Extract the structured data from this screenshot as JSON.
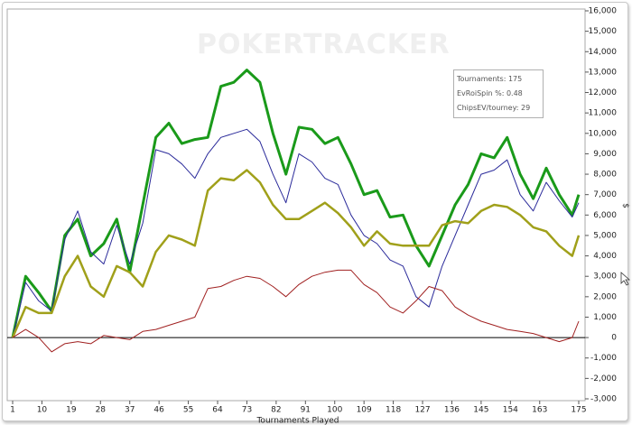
{
  "chart_data": {
    "type": "line",
    "watermark": "POKERTRACKER",
    "xlabel": "Tournaments Played",
    "ylabel": "$",
    "info": [
      "Tournaments: 175",
      "EvRoiSpin %: 0.48",
      "ChipsEV/tourney: 29"
    ],
    "x": [
      1,
      5,
      9,
      13,
      17,
      21,
      25,
      29,
      33,
      37,
      41,
      45,
      49,
      53,
      57,
      61,
      65,
      69,
      73,
      77,
      81,
      85,
      89,
      93,
      97,
      101,
      105,
      109,
      113,
      117,
      121,
      125,
      129,
      133,
      137,
      141,
      145,
      149,
      153,
      157,
      161,
      165,
      169,
      173,
      175
    ],
    "series": [
      {
        "color": "#1a9a1a",
        "width": 3,
        "values": [
          0,
          3000,
          2200,
          1300,
          5000,
          5800,
          4000,
          4600,
          5800,
          3200,
          6500,
          9800,
          10500,
          9500,
          9700,
          9800,
          12300,
          12500,
          13100,
          12500,
          10000,
          8000,
          10300,
          10200,
          9500,
          9800,
          8500,
          7000,
          7200,
          5900,
          6000,
          4500,
          3500,
          5000,
          6500,
          7500,
          9000,
          8800,
          9800,
          8000,
          6800,
          8300,
          7000,
          6000,
          7000
        ]
      },
      {
        "color": "#2a2a9a",
        "width": 1,
        "values": [
          0,
          2700,
          1800,
          1300,
          4800,
          6200,
          4200,
          3600,
          5500,
          3600,
          5600,
          9200,
          9000,
          8500,
          7800,
          9000,
          9800,
          10000,
          10200,
          9600,
          8000,
          6600,
          9000,
          8600,
          7800,
          7500,
          6000,
          5000,
          4600,
          3800,
          3500,
          2000,
          1500,
          3500,
          5000,
          6500,
          8000,
          8200,
          8700,
          7000,
          6200,
          7600,
          6700,
          5900,
          6600
        ]
      },
      {
        "color": "#a0a01a",
        "width": 2.5,
        "values": [
          0,
          1500,
          1200,
          1200,
          3000,
          4000,
          2500,
          2000,
          3500,
          3200,
          2500,
          4200,
          5000,
          4800,
          4500,
          7200,
          7800,
          7700,
          8200,
          7600,
          6500,
          5800,
          5800,
          6200,
          6600,
          6100,
          5400,
          4500,
          5200,
          4600,
          4500,
          4500,
          4500,
          5500,
          5700,
          5600,
          6200,
          6500,
          6400,
          6000,
          5400,
          5200,
          4500,
          4000,
          5000
        ]
      },
      {
        "color": "#a02020",
        "width": 1,
        "values": [
          0,
          400,
          0,
          -700,
          -300,
          -200,
          -300,
          100,
          0,
          -100,
          300,
          400,
          600,
          800,
          1000,
          2400,
          2500,
          2800,
          3000,
          2900,
          2500,
          2000,
          2600,
          3000,
          3200,
          3300,
          3300,
          2600,
          2200,
          1500,
          1200,
          1800,
          2500,
          2300,
          1500,
          1100,
          800,
          600,
          400,
          300,
          200,
          0,
          -200,
          0,
          800
        ]
      }
    ],
    "xlim": [
      1,
      175
    ],
    "xticks": [
      1,
      10,
      19,
      28,
      37,
      46,
      55,
      64,
      73,
      82,
      91,
      100,
      109,
      118,
      127,
      136,
      145,
      154,
      163,
      175
    ],
    "ylim": [
      -3000,
      16000
    ],
    "yticks": [
      {
        "value": -3000,
        "label": "-3,000"
      },
      {
        "value": -2000,
        "label": "-2,000"
      },
      {
        "value": -1000,
        "label": "-1,000"
      },
      0,
      {
        "value": 1000,
        "label": "1,000"
      },
      {
        "value": 2000,
        "label": "2,000"
      },
      {
        "value": 3000,
        "label": "3,000"
      },
      {
        "value": 4000,
        "label": "4,000"
      },
      {
        "value": 5000,
        "label": "5,000"
      },
      {
        "value": 6000,
        "label": "6,000"
      },
      {
        "value": 7000,
        "label": "7,000"
      },
      {
        "value": 8000,
        "label": "8,000"
      },
      {
        "value": 9000,
        "label": "9,000"
      },
      {
        "value": 10000,
        "label": "10,000"
      },
      {
        "value": 11000,
        "label": "11,000"
      },
      {
        "value": 12000,
        "label": "12,000"
      },
      {
        "value": 13000,
        "label": "13,000"
      },
      {
        "value": 14000,
        "label": "14,000"
      },
      {
        "value": 15000,
        "label": "15,000"
      },
      {
        "value": 16000,
        "label": "16,000"
      }
    ],
    "yaxis_side": "right",
    "grid": false,
    "zero_line": true
  }
}
